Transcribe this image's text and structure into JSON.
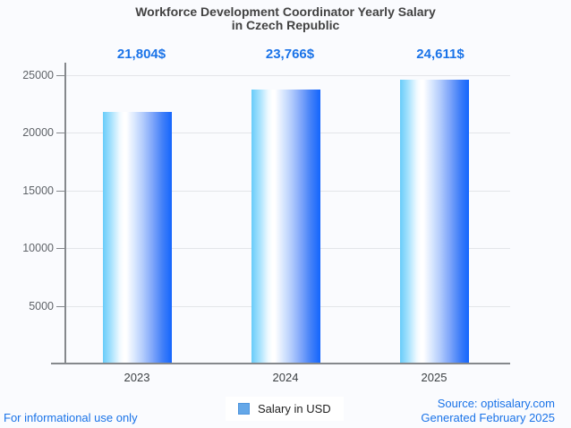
{
  "title": {
    "line1": "Workforce Development Coordinator Yearly Salary",
    "line2": "in Czech Republic"
  },
  "chart_data": {
    "type": "bar",
    "title": "Workforce Development Coordinator Yearly Salary in Czech Republic",
    "categories": [
      "2023",
      "2024",
      "2025"
    ],
    "series": [
      {
        "name": "Salary in USD",
        "values": [
          21804,
          23766,
          24611
        ]
      }
    ],
    "value_labels": [
      "21,804$",
      "23,766$",
      "24,611$"
    ],
    "xlabel": "",
    "ylabel": "",
    "ylim": [
      0,
      25000
    ],
    "yticks": [
      5000,
      10000,
      15000,
      20000,
      25000
    ],
    "grid": true,
    "legend_position": "bottom",
    "bar_gradient": [
      "#68ccfa",
      "#ffffff",
      "#1365fd"
    ]
  },
  "legend": {
    "label": "Salary in USD",
    "marker_color": "#64a7e8",
    "marker_border": "#4f95dd"
  },
  "footer": {
    "left": "For informational use only",
    "source": "Source: optisalary.com",
    "generated": "Generated February 2025"
  },
  "colors": {
    "accent_blue": "#1a73e8",
    "title_text": "#424242",
    "axis_text": "#5f6368",
    "category_text": "#3c4043",
    "gridline": "#e3e5e9",
    "axis_line": "#85888c",
    "background": "#fafbfe",
    "legend_background": "#ffffff"
  }
}
